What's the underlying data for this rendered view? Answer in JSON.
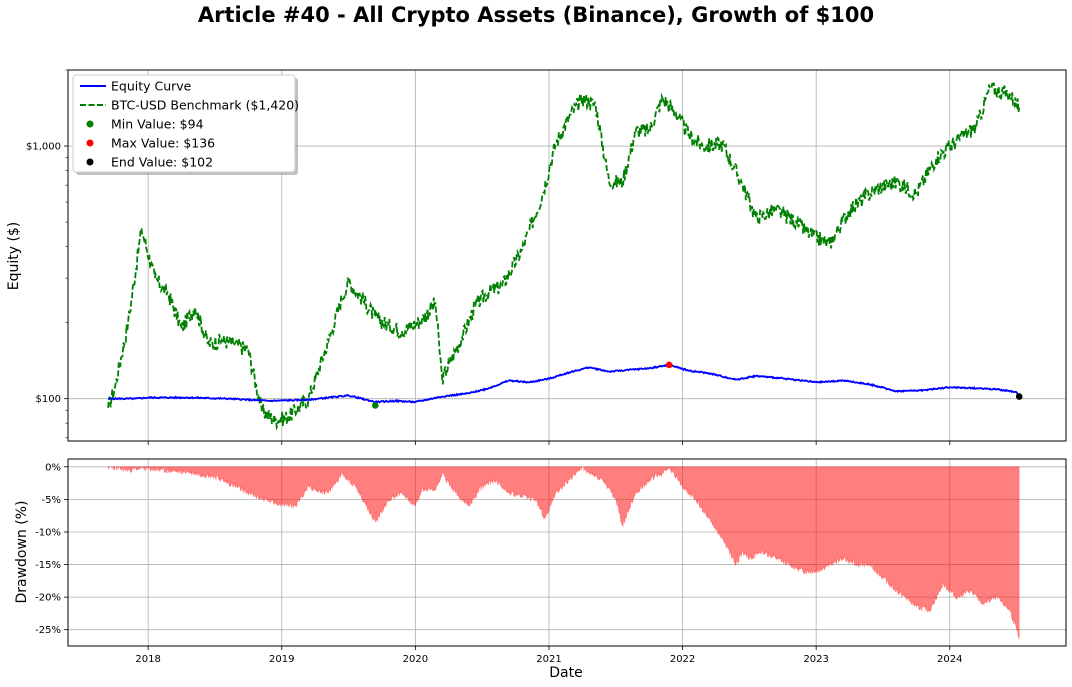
{
  "title": "Article #40 - All Crypto Assets (Binance), Growth of $100",
  "chart_data": [
    {
      "type": "line",
      "ylabel": "Equity ($)",
      "yscale": "log",
      "ylim": [
        68,
        2000
      ],
      "xlim": [
        2017.4,
        2024.87
      ],
      "yticks": [
        {
          "value": 100,
          "label": "$100"
        },
        {
          "value": 1000,
          "label": "$1,000"
        }
      ],
      "grid": true,
      "legend_position": "top-left",
      "series": [
        {
          "name": "Equity Curve",
          "color": "#0000ff",
          "style": "solid",
          "x": [
            2017.7,
            2017.9,
            2018.0,
            2018.3,
            2018.6,
            2018.9,
            2019.2,
            2019.5,
            2019.7,
            2019.85,
            2020.0,
            2020.2,
            2020.4,
            2020.55,
            2020.7,
            2020.85,
            2021.0,
            2021.15,
            2021.3,
            2021.45,
            2021.6,
            2021.75,
            2021.9,
            2022.05,
            2022.2,
            2022.4,
            2022.55,
            2022.7,
            2022.9,
            2023.0,
            2023.2,
            2023.4,
            2023.6,
            2023.8,
            2024.0,
            2024.2,
            2024.35,
            2024.5,
            2024.52
          ],
          "values": [
            100,
            100,
            101,
            101,
            100,
            98,
            99,
            103,
            97,
            98,
            97,
            102,
            105,
            110,
            118,
            116,
            120,
            127,
            133,
            128,
            130,
            132,
            136,
            129,
            126,
            119,
            123,
            121,
            118,
            116,
            118,
            114,
            107,
            108,
            111,
            110,
            109,
            106,
            102
          ]
        },
        {
          "name": "BTC-USD Benchmark ($1,420)",
          "color": "#008000",
          "style": "dashed",
          "x": [
            2017.7,
            2017.75,
            2017.85,
            2017.95,
            2018.05,
            2018.15,
            2018.25,
            2018.35,
            2018.45,
            2018.55,
            2018.65,
            2018.75,
            2018.85,
            2018.95,
            2019.05,
            2019.2,
            2019.35,
            2019.45,
            2019.5,
            2019.6,
            2019.7,
            2019.8,
            2019.9,
            2020.05,
            2020.15,
            2020.2,
            2020.35,
            2020.45,
            2020.55,
            2020.65,
            2020.8,
            2020.95,
            2021.05,
            2021.15,
            2021.25,
            2021.35,
            2021.45,
            2021.55,
            2021.65,
            2021.75,
            2021.85,
            2021.95,
            2022.05,
            2022.15,
            2022.3,
            2022.45,
            2022.55,
            2022.7,
            2022.85,
            2022.95,
            2023.1,
            2023.25,
            2023.45,
            2023.6,
            2023.75,
            2023.9,
            2024.05,
            2024.2,
            2024.3,
            2024.45,
            2024.52
          ],
          "values": [
            92,
            110,
            200,
            470,
            300,
            260,
            190,
            230,
            165,
            170,
            165,
            155,
            90,
            82,
            85,
            100,
            170,
            250,
            290,
            250,
            210,
            195,
            185,
            205,
            240,
            120,
            175,
            235,
            265,
            280,
            390,
            640,
            1020,
            1300,
            1550,
            1450,
            720,
            720,
            1150,
            1150,
            1550,
            1350,
            1100,
            1000,
            1020,
            700,
            520,
            560,
            500,
            450,
            410,
            560,
            680,
            720,
            650,
            900,
            1050,
            1200,
            1700,
            1600,
            1420
          ]
        }
      ],
      "markers": [
        {
          "label": "Min Value: $94",
          "x": 2019.7,
          "y": 94,
          "color": "#008000"
        },
        {
          "label": "Max Value: $136",
          "x": 2021.9,
          "y": 136,
          "color": "#ff0000"
        },
        {
          "label": "End Value: $102",
          "x": 2024.52,
          "y": 102,
          "color": "#000000"
        }
      ]
    },
    {
      "type": "area",
      "xlabel": "Date",
      "ylabel": "Drawdown (%)",
      "ylim": [
        -27.5,
        1.2
      ],
      "xlim": [
        2017.4,
        2024.87
      ],
      "yticks": [
        0,
        -5,
        -10,
        -15,
        -20,
        -25
      ],
      "ytick_labels": [
        "0%",
        "-5%",
        "-10%",
        "-15%",
        "-20%",
        "-25%"
      ],
      "xticks": [
        2018,
        2019,
        2020,
        2021,
        2022,
        2023,
        2024
      ],
      "xtick_labels": [
        "2018",
        "2019",
        "2020",
        "2021",
        "2022",
        "2023",
        "2024"
      ],
      "grid": true,
      "series": [
        {
          "name": "",
          "color": "#ff0000",
          "opacity": 0.5,
          "x": [
            2017.7,
            2017.85,
            2017.95,
            2018.1,
            2018.3,
            2018.5,
            2018.65,
            2018.8,
            2018.95,
            2019.1,
            2019.2,
            2019.25,
            2019.35,
            2019.45,
            2019.55,
            2019.65,
            2019.7,
            2019.8,
            2019.9,
            2020.0,
            2020.05,
            2020.15,
            2020.2,
            2020.3,
            2020.4,
            2020.5,
            2020.6,
            2020.7,
            2020.8,
            2020.9,
            2020.97,
            2021.05,
            2021.15,
            2021.25,
            2021.3,
            2021.4,
            2021.5,
            2021.55,
            2021.65,
            2021.75,
            2021.85,
            2021.9,
            2022.0,
            2022.1,
            2022.2,
            2022.3,
            2022.4,
            2022.45,
            2022.5,
            2022.6,
            2022.7,
            2022.8,
            2022.9,
            2023.0,
            2023.1,
            2023.2,
            2023.3,
            2023.4,
            2023.5,
            2023.6,
            2023.7,
            2023.75,
            2023.85,
            2023.95,
            2024.05,
            2024.15,
            2024.25,
            2024.35,
            2024.45,
            2024.5,
            2024.52
          ],
          "values": [
            0,
            -0.5,
            -0.2,
            -0.5,
            -0.8,
            -1.5,
            -3,
            -4.5,
            -5.5,
            -6,
            -3,
            -3.5,
            -4,
            -1,
            -3,
            -6.5,
            -8.5,
            -5,
            -4,
            -6,
            -3.5,
            -3.5,
            -1,
            -4,
            -6,
            -3,
            -2,
            -4,
            -4.5,
            -5,
            -8,
            -4,
            -2,
            0,
            -1,
            -2,
            -5,
            -9,
            -4,
            -2,
            -1,
            0,
            -3,
            -5,
            -8,
            -11,
            -15,
            -13,
            -14,
            -13,
            -14,
            -15,
            -16,
            -16,
            -15,
            -14,
            -15,
            -15,
            -17,
            -19,
            -20.5,
            -21.5,
            -22,
            -18,
            -20,
            -19,
            -21,
            -20,
            -22,
            -25,
            -26.5
          ]
        }
      ]
    }
  ],
  "legend": [
    {
      "label": "Equity Curve",
      "kind": "line",
      "color": "#0000ff"
    },
    {
      "label": "BTC-USD Benchmark ($1,420)",
      "kind": "dashed",
      "color": "#008000"
    },
    {
      "label": "Min Value: $94",
      "kind": "dot",
      "color": "#008000"
    },
    {
      "label": "Max Value: $136",
      "kind": "dot",
      "color": "#ff0000"
    },
    {
      "label": "End Value: $102",
      "kind": "dot",
      "color": "#000000"
    }
  ]
}
